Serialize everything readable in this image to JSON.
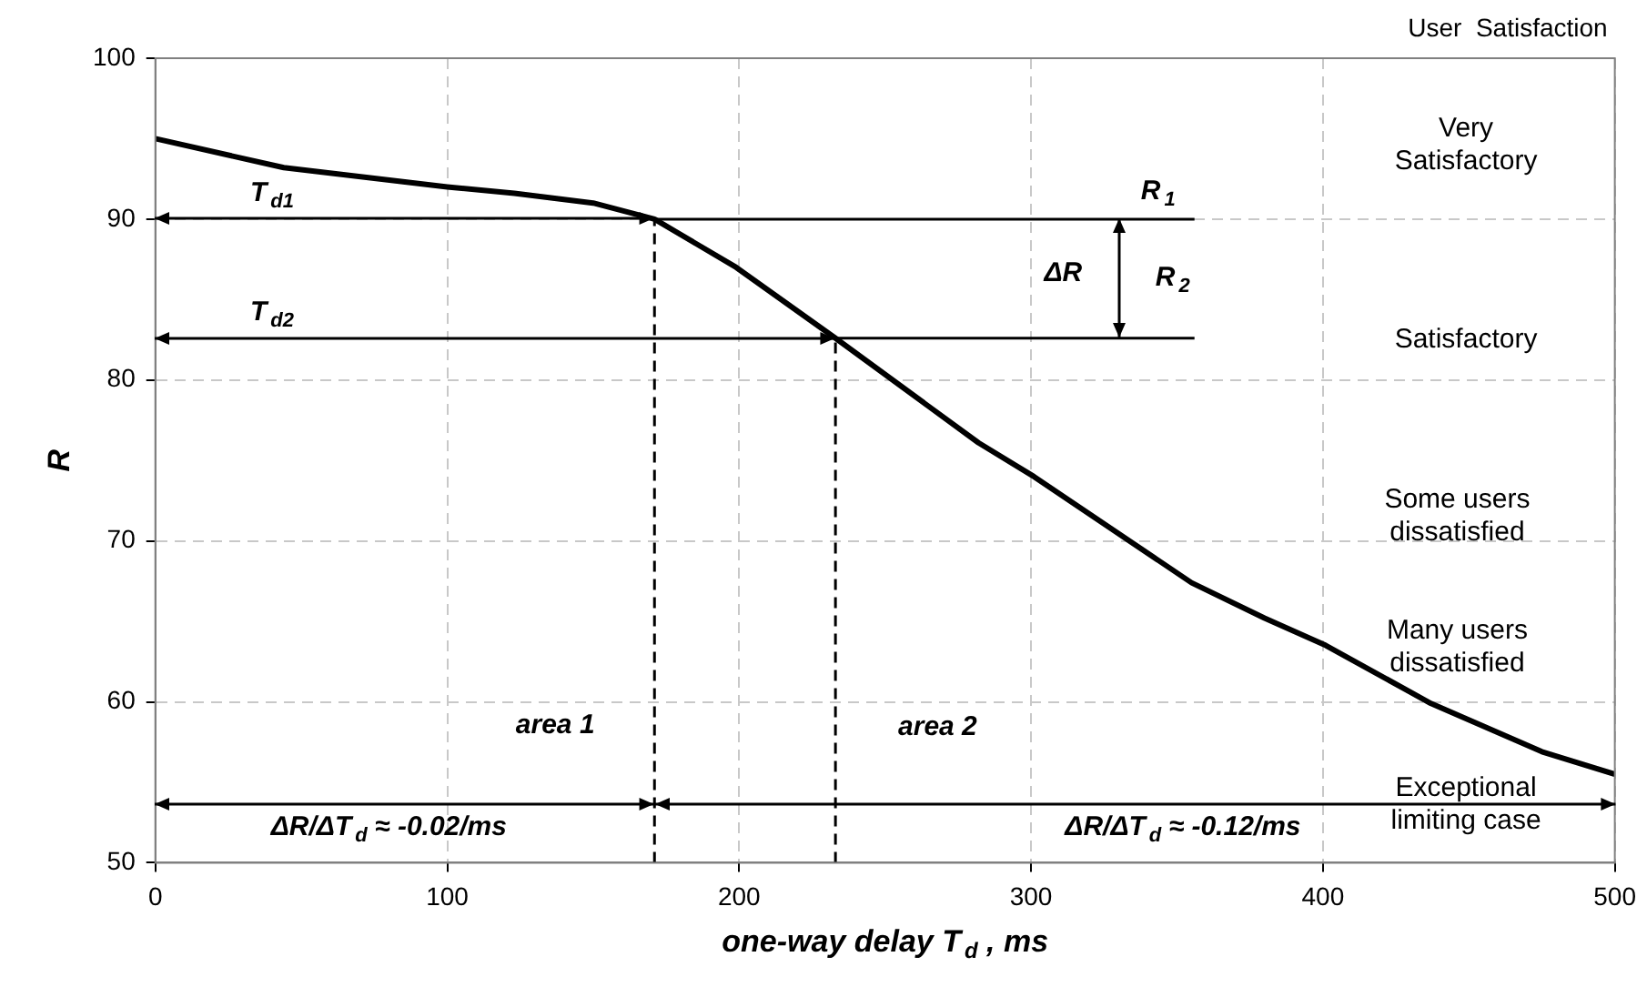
{
  "chart_data": {
    "type": "line",
    "xlabel": "one-way delay T$_{d}$ , ms",
    "ylabel": "R",
    "xlim": [
      0,
      500
    ],
    "xticks": [
      0,
      100,
      200,
      300,
      400,
      500
    ],
    "ylim": [
      50,
      100
    ],
    "yticks": [
      50,
      60,
      70,
      80,
      90,
      100
    ],
    "grid": true,
    "legend": false,
    "marker": "none",
    "series": [
      {
        "color": "#000000",
        "x": [
          0,
          44,
          100,
          123,
          150,
          171,
          199,
          233,
          282,
          301,
          355,
          380,
          401,
          437,
          475,
          500
        ],
        "values": [
          95,
          93.2,
          92,
          91.6,
          91,
          90,
          87,
          82.6,
          76.1,
          74,
          67.4,
          65.2,
          63.5,
          59.9,
          56.9,
          55.5
        ]
      },
      {
        "color": "#000000",
        "x": [
          171,
          263,
          356
        ],
        "values": [
          90,
          90,
          90
        ]
      },
      {
        "color": "#000000",
        "x": [
          233,
          295,
          356
        ],
        "values": [
          82.6,
          82.6,
          82.6
        ]
      },
      {
        "color": "#000000",
        "x": [
          171,
          171
        ],
        "values": [
          50,
          90
        ],
        "line_style": "dashed"
      },
      {
        "color": "#000000",
        "x": [
          233,
          233
        ],
        "values": [
          50,
          82.6
        ],
        "line_style": "dashed"
      }
    ],
    "annotations": [
      "User  Satisfaction",
      "T$_{d1}$",
      "T$_{d2}$",
      {
        "text": "R$_{1}$",
        "x": 356,
        "y": 90
      },
      {
        "text": "R$_{2}$",
        "x": 356,
        "y": 82.6
      },
      "ΔR",
      "area 1",
      "area 2",
      "ΔR/ΔT$_{d}$ ≈ -0.02/ms",
      "ΔR/ΔT$_{d}$ ≈ -0.12/ms",
      "Very\nSatisfactory",
      "Satisfactory",
      "Some users\ndissatisfied",
      "Many users\ndissatisfied",
      "Exceptional\nlimiting case"
    ]
  }
}
